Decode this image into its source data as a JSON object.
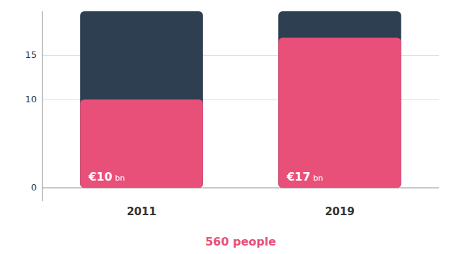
{
  "chart_data": {
    "type": "bar",
    "categories": [
      "2011",
      "2019"
    ],
    "series": [
      {
        "color": "#2e3f52",
        "values": [
          20,
          20
        ]
      },
      {
        "color": "#e8507a",
        "values": [
          10,
          17
        ]
      }
    ],
    "ylim": [
      -1.5,
      20
    ],
    "yticks": [
      0,
      10,
      15
    ],
    "annotations": [
      [
        "€10",
        "bn"
      ],
      [
        "€17",
        "bn"
      ]
    ],
    "subtitle": "560 people"
  }
}
